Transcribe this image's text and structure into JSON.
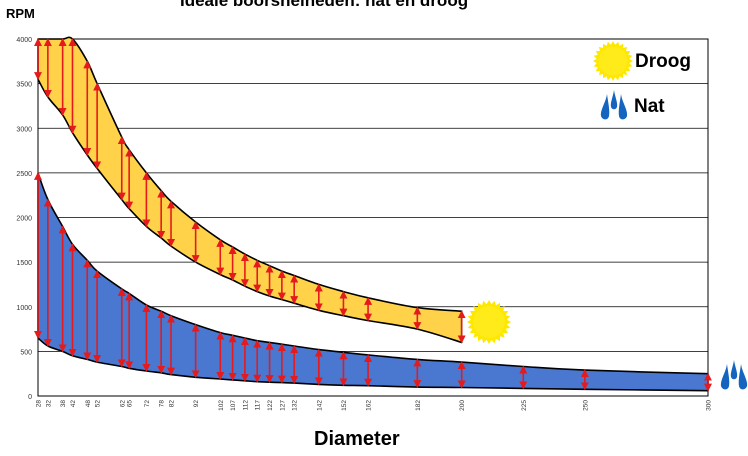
{
  "chart_data": {
    "type": "area",
    "title": "Ideale boorsnelheden: nat en droog",
    "ylabel": "RPM",
    "xlabel": "Diameter",
    "ylim": [
      0,
      4000
    ],
    "yticks": [
      0,
      500,
      1000,
      1500,
      2000,
      2500,
      3000,
      3500,
      4000
    ],
    "xticks": [
      28,
      32,
      38,
      42,
      48,
      52,
      62,
      65,
      72,
      78,
      82,
      92,
      102,
      107,
      112,
      117,
      122,
      127,
      132,
      142,
      152,
      162,
      182,
      200,
      225,
      250,
      300
    ],
    "grid": "horizontal",
    "legend_position": "top-right",
    "series": [
      {
        "name": "Droog",
        "color": "#FFD24A",
        "x": [
          28,
          32,
          38,
          42,
          48,
          52,
          62,
          65,
          72,
          78,
          82,
          92,
          102,
          107,
          112,
          117,
          122,
          127,
          132,
          142,
          152,
          162,
          182,
          200
        ],
        "upper": [
          4000,
          4000,
          4000,
          4000,
          3750,
          3500,
          2900,
          2760,
          2500,
          2300,
          2180,
          1950,
          1750,
          1670,
          1590,
          1520,
          1460,
          1400,
          1350,
          1250,
          1170,
          1100,
          990,
          950
        ],
        "lower": [
          3550,
          3350,
          3150,
          2950,
          2700,
          2550,
          2200,
          2100,
          1900,
          1770,
          1680,
          1500,
          1360,
          1300,
          1230,
          1170,
          1120,
          1080,
          1040,
          960,
          900,
          845,
          750,
          600
        ]
      },
      {
        "name": "Nat",
        "color": "#4A78D0",
        "x": [
          28,
          32,
          38,
          42,
          48,
          52,
          62,
          65,
          72,
          78,
          82,
          92,
          102,
          107,
          112,
          117,
          122,
          127,
          132,
          142,
          152,
          162,
          182,
          200,
          225,
          250,
          300
        ],
        "upper": [
          2500,
          2200,
          1900,
          1700,
          1520,
          1400,
          1200,
          1150,
          1020,
          950,
          900,
          800,
          710,
          680,
          650,
          620,
          600,
          580,
          560,
          520,
          490,
          460,
          410,
          380,
          330,
          290,
          250
        ],
        "lower": [
          650,
          560,
          500,
          450,
          410,
          380,
          330,
          310,
          280,
          260,
          240,
          210,
          190,
          180,
          170,
          160,
          155,
          150,
          145,
          130,
          120,
          115,
          100,
          95,
          85,
          75,
          60
        ]
      }
    ]
  },
  "legend": {
    "droog_label": "Droog",
    "nat_label": "Nat",
    "droog_icon": "sun-icon",
    "nat_icon": "water-drops-icon"
  }
}
